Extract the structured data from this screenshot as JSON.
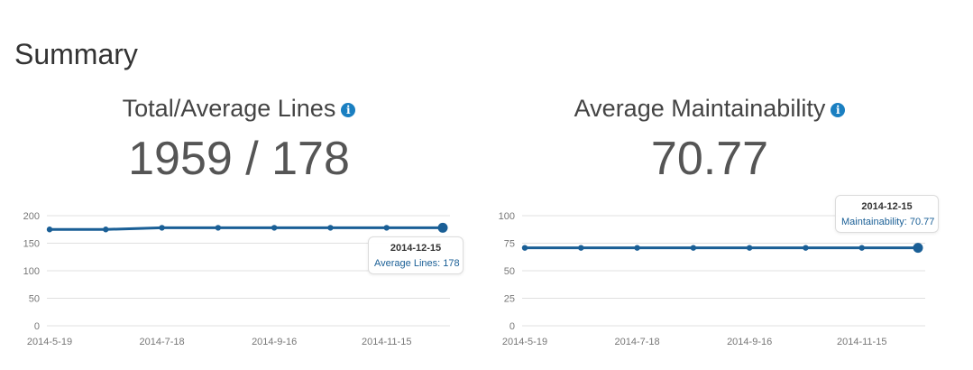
{
  "page": {
    "title": "Summary"
  },
  "panels": [
    {
      "heading": "Total/Average Lines",
      "info_icon": "info-icon",
      "value": "1959 / 178",
      "tooltip": {
        "date": "2014-12-15",
        "label": "Average Lines",
        "value": "178"
      }
    },
    {
      "heading": "Average Maintainability",
      "info_icon": "info-icon",
      "value": "70.77",
      "tooltip": {
        "date": "2014-12-15",
        "label": "Maintainability",
        "value": "70.77"
      }
    }
  ],
  "colors": {
    "line": "#1a5f96",
    "grid": "#e0e0e0",
    "axis_text": "#777777",
    "info": "#1a7fc1"
  },
  "chart_data": [
    {
      "type": "line",
      "title": "Total/Average Lines",
      "xlabel": "",
      "ylabel": "",
      "ylim": [
        0,
        200
      ],
      "yticks": [
        0,
        50,
        100,
        150,
        200
      ],
      "xtick_labels": [
        "2014-5-19",
        "2014-7-18",
        "2014-9-16",
        "2014-11-15"
      ],
      "series": [
        {
          "name": "Average Lines",
          "x": [
            "2014-5-19",
            "2014-6-18",
            "2014-7-18",
            "2014-8-17",
            "2014-9-16",
            "2014-10-16",
            "2014-11-15",
            "2014-12-15"
          ],
          "values": [
            175,
            175,
            178,
            178,
            178,
            178,
            178,
            178
          ]
        }
      ],
      "highlight_index": 7
    },
    {
      "type": "line",
      "title": "Average Maintainability",
      "xlabel": "",
      "ylabel": "",
      "ylim": [
        0,
        100
      ],
      "yticks": [
        0,
        25,
        50,
        75,
        100
      ],
      "xtick_labels": [
        "2014-5-19",
        "2014-7-18",
        "2014-9-16",
        "2014-11-15"
      ],
      "series": [
        {
          "name": "Maintainability",
          "x": [
            "2014-5-19",
            "2014-6-18",
            "2014-7-18",
            "2014-8-17",
            "2014-9-16",
            "2014-10-16",
            "2014-11-15",
            "2014-12-15"
          ],
          "values": [
            70.77,
            70.77,
            70.77,
            70.77,
            70.77,
            70.77,
            70.77,
            70.77
          ]
        }
      ],
      "highlight_index": 7
    }
  ]
}
